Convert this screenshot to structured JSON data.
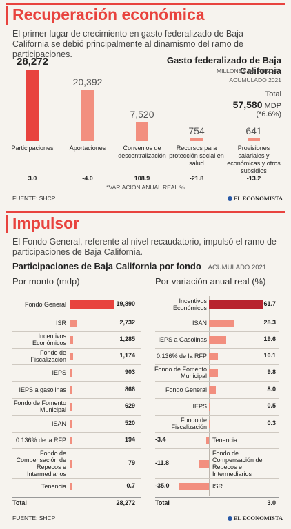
{
  "section1": {
    "title": "Recuperación económica",
    "intro": "El primer lugar de crecimiento en gasto federalizado de Baja California se debió principalmente al dinamismo del ramo de participaciones.",
    "chart_title": "Gasto federalizado de Baja California",
    "chart_unit": "MILLONES DE PESOS - ACUMULADO 2021",
    "total_label": "Total",
    "total_value": "57,580",
    "total_unit": "MDP",
    "total_change": "(*6.6%)",
    "footnote": "*VARIACIÓN ANUAL REAL %",
    "source": "FUENTE: SHCP",
    "brand": "EL ECONOMISTA"
  },
  "section2": {
    "title": "Impulsor",
    "intro": "El Fondo General, referente al nivel recaudatorio, impulsó el ramo de participaciones de Baja California.",
    "chart_title": "Participaciones de Baja California por fondo",
    "chart_unit": "ACUMULADO 2021",
    "left_heading": "Por monto (mdp)",
    "right_heading": "Por variación anual real (%)",
    "total_label": "Total",
    "left_total": "28,272",
    "right_total": "3.0",
    "source": "FUENTE: SHCP",
    "brand": "EL ECONOMISTA"
  },
  "chart_data": [
    {
      "type": "bar",
      "title": "Gasto federalizado de Baja California",
      "categories": [
        "Participaciones",
        "Aportaciones",
        "Convenios de descentralización",
        "Recursos para protección social en salud",
        "Provisiones salariales y económicas y otros subsidios"
      ],
      "values": [
        28272,
        20392,
        7520,
        754,
        641
      ],
      "value_labels": [
        "28,272",
        "20,392",
        "7,520",
        "754",
        "641"
      ],
      "change": [
        "3.0",
        "-4.0",
        "108.9",
        "-21.8",
        "-13.2"
      ],
      "colors": [
        "#e8433e",
        "#f28f7f",
        "#f28f7f",
        "#f28f7f",
        "#f28f7f"
      ]
    },
    {
      "type": "bar",
      "title": "Por monto (mdp)",
      "categories": [
        "Fondo General",
        "ISR",
        "Incentivos Económicos",
        "Fondo de Fiscalización",
        "IEPS",
        "IEPS a gasolinas",
        "Fondo de Fomento Municipal",
        "ISAN",
        "0.136% de la RFP",
        "Fondo de Compensación de Repecos e Intermediarios",
        "Tenencia"
      ],
      "values": [
        19890,
        2732,
        1285,
        1174,
        903,
        866,
        629,
        520,
        194,
        79,
        0.7
      ],
      "value_labels": [
        "19,890",
        "2,732",
        "1,285",
        "1,174",
        "903",
        "866",
        "629",
        "520",
        "194",
        "79",
        "0.7"
      ]
    },
    {
      "type": "bar",
      "title": "Por variación anual real (%)",
      "categories": [
        "Incentivos Económicos",
        "ISAN",
        "IEPS a Gasolinas",
        "0.136% de la RFP",
        "Fondo de Fomento Municipal",
        "Fondo General",
        "IEPS",
        "Fondo de Fiscalización",
        "Tenencia",
        "Fondo de Compensación de Repecos e Intermediarios",
        "ISR"
      ],
      "values": [
        61.7,
        28.3,
        19.6,
        10.1,
        9.8,
        8.0,
        0.5,
        0.3,
        -3.4,
        -11.8,
        -35.0
      ],
      "value_labels": [
        "61.7",
        "28.3",
        "19.6",
        "10.1",
        "9.8",
        "8.0",
        "0.5",
        "0.3",
        "-3.4",
        "-11.8",
        "-35.0"
      ]
    }
  ]
}
